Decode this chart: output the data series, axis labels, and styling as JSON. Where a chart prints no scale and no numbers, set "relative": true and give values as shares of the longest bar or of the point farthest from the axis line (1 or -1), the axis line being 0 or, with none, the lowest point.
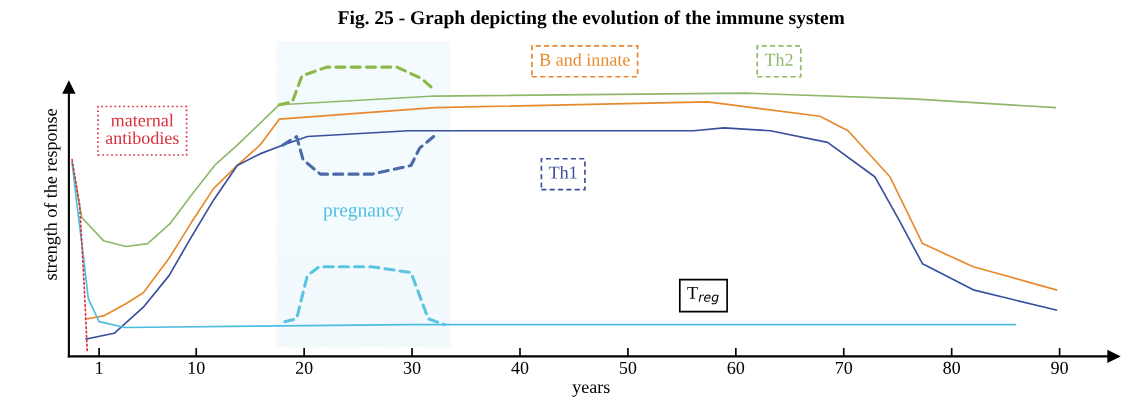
{
  "chart_data": {
    "type": "line",
    "title": "Fig. 25 - Graph depicting the evolution of the immune system",
    "xlabel": "years",
    "ylabel": "strength of the response",
    "relative": true,
    "xlim": [
      -1.8,
      95
    ],
    "xticks": [
      1,
      10,
      20,
      30,
      40,
      50,
      60,
      70,
      80,
      90
    ],
    "grid": false,
    "legend": false,
    "marker": "none",
    "line_style": "solid",
    "series": [
      {
        "name": "Th2",
        "color": "#8fb86a",
        "x": [
          -1.5,
          -0.6,
          1.4,
          3.5,
          5.5,
          7.6,
          9.6,
          11.7,
          13.8,
          17.7,
          32.1,
          60.9,
          76.4,
          89.6
        ],
        "values": [
          0.67,
          0.48,
          0.4,
          0.38,
          0.39,
          0.46,
          0.56,
          0.66,
          0.73,
          0.87,
          0.9,
          0.91,
          0.89,
          0.86
        ]
      },
      {
        "name": "B and innate",
        "color": "#e8892b",
        "x": [
          -0.1,
          1.4,
          3.4,
          5.1,
          7.5,
          9.5,
          11.6,
          13.8,
          15.9,
          17.7,
          32.1,
          57.4,
          67.8,
          70.4,
          74.3,
          77.3,
          82.0,
          89.7
        ],
        "values": [
          0.13,
          0.14,
          0.18,
          0.22,
          0.34,
          0.46,
          0.58,
          0.66,
          0.73,
          0.82,
          0.86,
          0.88,
          0.83,
          0.78,
          0.62,
          0.39,
          0.31,
          0.23
        ]
      },
      {
        "name": "Th1",
        "color": "#3a4f9e",
        "x": [
          -0.2,
          2.4,
          5.1,
          7.5,
          9.5,
          11.6,
          13.8,
          15.9,
          18.0,
          20.3,
          29.7,
          40.2,
          56.1,
          58.9,
          63.2,
          68.5,
          72.9,
          75.0,
          77.3,
          82.0,
          89.7
        ],
        "values": [
          0.06,
          0.08,
          0.17,
          0.28,
          0.41,
          0.54,
          0.66,
          0.7,
          0.73,
          0.76,
          0.78,
          0.78,
          0.78,
          0.79,
          0.78,
          0.74,
          0.62,
          0.48,
          0.32,
          0.23,
          0.16
        ]
      },
      {
        "name": "T$_{reg}$",
        "color": "#4dbde0",
        "x": [
          -1.5,
          -1.1,
          -0.6,
          0.0,
          1.0,
          3.4,
          29.7,
          85.9
        ],
        "values": [
          0.67,
          0.54,
          0.39,
          0.2,
          0.12,
          0.1,
          0.11,
          0.11
        ]
      },
      {
        "name": "maternal antibodies",
        "color": "#d9303c",
        "line_style": "dotted",
        "x": [
          -1.5,
          -0.8,
          -0.4,
          -0.1
        ],
        "values": [
          0.68,
          0.52,
          0.26,
          0.02
        ]
      },
      {
        "color": "#8cb847",
        "line_style": "dashed",
        "x": [
          17.7,
          18.9,
          19.8,
          22.1,
          28.6,
          30.9,
          32.1
        ],
        "values": [
          0.87,
          0.88,
          0.97,
          1.0,
          1.0,
          0.96,
          0.92
        ]
      },
      {
        "color": "#4a6aa8",
        "line_style": "dashed",
        "x": [
          18.0,
          19.3,
          19.9,
          21.5,
          26.3,
          29.9,
          30.7,
          32.0
        ],
        "values": [
          0.73,
          0.76,
          0.68,
          0.63,
          0.63,
          0.66,
          0.72,
          0.76
        ]
      },
      {
        "color": "#5bc4e0",
        "line_style": "dashed",
        "x": [
          18.2,
          19.3,
          20.3,
          21.4,
          26.2,
          29.9,
          31.5,
          33.0
        ],
        "values": [
          0.12,
          0.13,
          0.28,
          0.31,
          0.31,
          0.29,
          0.13,
          0.11
        ]
      }
    ],
    "bands": [
      {
        "axis": "x",
        "from": 17.5,
        "to": 33.5,
        "label": "pregnancy",
        "color": "#4dbde0"
      }
    ]
  }
}
